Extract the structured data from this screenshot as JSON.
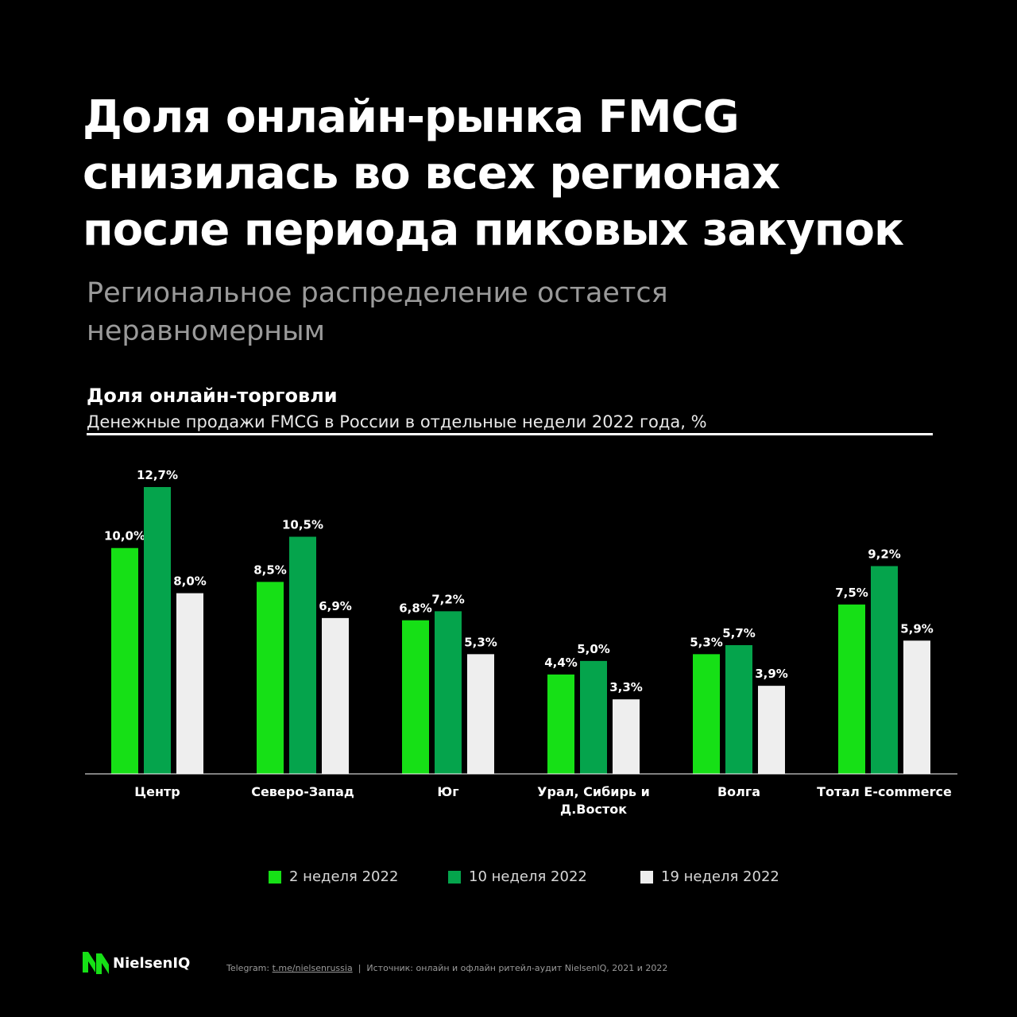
{
  "headline": {
    "line1": "Доля онлайн-рынка FMCG",
    "line2": "снизилась во всех регионах",
    "line3": "после периода пиковых закупок"
  },
  "subheadline": {
    "line1": "Региональное распределение остается",
    "line2": "неравномерным"
  },
  "chart_data": {
    "type": "bar",
    "title": "Доля онлайн-торговли",
    "subtitle": "Денежные продажи FMCG в России в отдельные недели 2022 года, %",
    "categories": [
      "Центр",
      "Северо-Запад",
      "Юг",
      "Урал, Сибирь и Д.Восток",
      "Волга",
      "Тотал E-commerce"
    ],
    "category_lines": [
      [
        "Центр"
      ],
      [
        "Северо-Запад"
      ],
      [
        "Юг"
      ],
      [
        "Урал, Сибирь и",
        "Д.Восток"
      ],
      [
        "Волга"
      ],
      [
        "Тотал E-commerce"
      ]
    ],
    "series": [
      {
        "name": "2 неделя 2022",
        "color": "#16e016",
        "values": [
          10.0,
          8.5,
          6.8,
          4.4,
          5.3,
          7.5
        ],
        "labels": [
          "10,0%",
          "8,5%",
          "6,8%",
          "4,4%",
          "5,3%",
          "7,5%"
        ]
      },
      {
        "name": "10 неделя 2022",
        "color": "#05a44c",
        "values": [
          12.7,
          10.5,
          7.2,
          5.0,
          5.7,
          9.2
        ],
        "labels": [
          "12,7%",
          "10,5%",
          "7,2%",
          "5,0%",
          "5,7%",
          "9,2%"
        ]
      },
      {
        "name": "19 неделя 2022",
        "color": "#eeeeee",
        "values": [
          8.0,
          6.9,
          5.3,
          3.3,
          3.9,
          5.9
        ],
        "labels": [
          "8,0%",
          "6,9%",
          "5,3%",
          "3,3%",
          "3,9%",
          "5,9%"
        ]
      }
    ],
    "ylim": [
      0,
      12.7
    ],
    "grid": false,
    "legend": "bottom-center"
  },
  "footer": {
    "logo_text": "NielsenIQ",
    "telegram_label": "Telegram:",
    "telegram_link": "t.me/nielsenrussia",
    "separator": "|",
    "source": "Источник: онлайн и офлайн ритейл-аудит NielsenIQ, 2021 и 2022"
  }
}
